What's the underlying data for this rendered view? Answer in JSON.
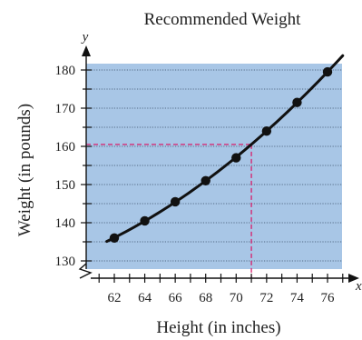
{
  "chart_data": {
    "type": "line",
    "title": "Recommended Weight",
    "xlabel": "Height (in inches)",
    "ylabel": "Weight (in pounds)",
    "x_axis_var": "x",
    "y_axis_var": "y",
    "xlim": [
      60.5,
      77
    ],
    "ylim": [
      125,
      185
    ],
    "xticks": [
      62,
      64,
      66,
      68,
      70,
      72,
      74,
      76
    ],
    "yticks": [
      130,
      140,
      150,
      160,
      170,
      180
    ],
    "grid": true,
    "axis_break_y": true,
    "x": [
      62,
      64,
      66,
      68,
      70,
      72,
      74,
      76
    ],
    "y": [
      136,
      140.5,
      145.5,
      151,
      157,
      164,
      171.5,
      179.5
    ],
    "curve": {
      "x_start": 61.5,
      "x_end": 77
    },
    "guide_lines": {
      "x": 71,
      "y": 160.5
    },
    "colors": {
      "plot_background": "#a8c6e6",
      "curve": "#111111",
      "guide": "#d81e6b"
    }
  }
}
